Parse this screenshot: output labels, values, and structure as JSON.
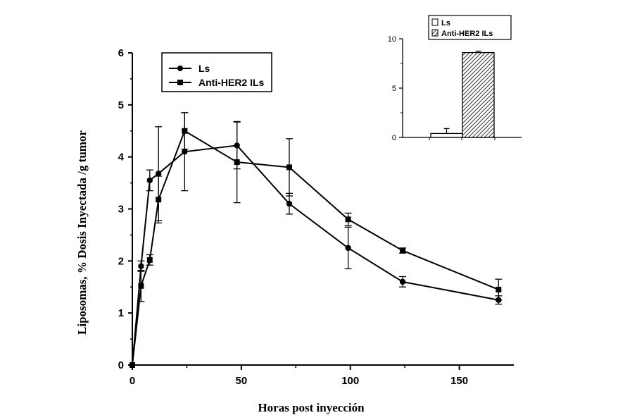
{
  "chart_data": [
    {
      "type": "line",
      "xlabel": "Horas post inyección",
      "ylabel": "Liposomas, % Dosis Inyectada /g tumor",
      "xlim": [
        0,
        175
      ],
      "ylim": [
        0,
        6
      ],
      "xticks": [
        "0",
        "50",
        "100",
        "150"
      ],
      "yticks": [
        "0",
        "1",
        "2",
        "3",
        "4",
        "5",
        "6"
      ],
      "legend": "top-left",
      "series": [
        {
          "name": "Ls",
          "marker": "circle",
          "x": [
            0,
            4,
            8,
            12,
            24,
            48,
            72,
            99,
            124,
            168
          ],
          "y": [
            0,
            1.9,
            3.55,
            3.68,
            4.1,
            4.22,
            3.1,
            2.25,
            1.6,
            1.25
          ],
          "error": [
            0,
            0.1,
            0.2,
            0.9,
            0.75,
            0.45,
            0.2,
            0.4,
            0.1,
            0.08
          ]
        },
        {
          "name": "Anti-HER2 ILs",
          "marker": "square",
          "x": [
            0,
            4,
            8,
            12,
            24,
            48,
            72,
            99,
            124,
            168
          ],
          "y": [
            0,
            1.52,
            2.02,
            3.18,
            4.5,
            3.9,
            3.8,
            2.8,
            2.2,
            1.45
          ],
          "error": [
            0,
            0.3,
            0.1,
            0.45,
            0.35,
            0.78,
            0.55,
            0.12,
            0.05,
            0.2
          ]
        }
      ]
    },
    {
      "type": "bar",
      "categories": [
        "Ls",
        "Anti-HER2 ILs"
      ],
      "values": [
        0.4,
        8.6
      ],
      "error": [
        0.5,
        0.15
      ],
      "ylim": [
        0,
        10
      ],
      "yticks": [
        "0",
        "5",
        "10"
      ],
      "legend": "top",
      "colors": [
        "#ffffff",
        "hatched"
      ]
    }
  ]
}
